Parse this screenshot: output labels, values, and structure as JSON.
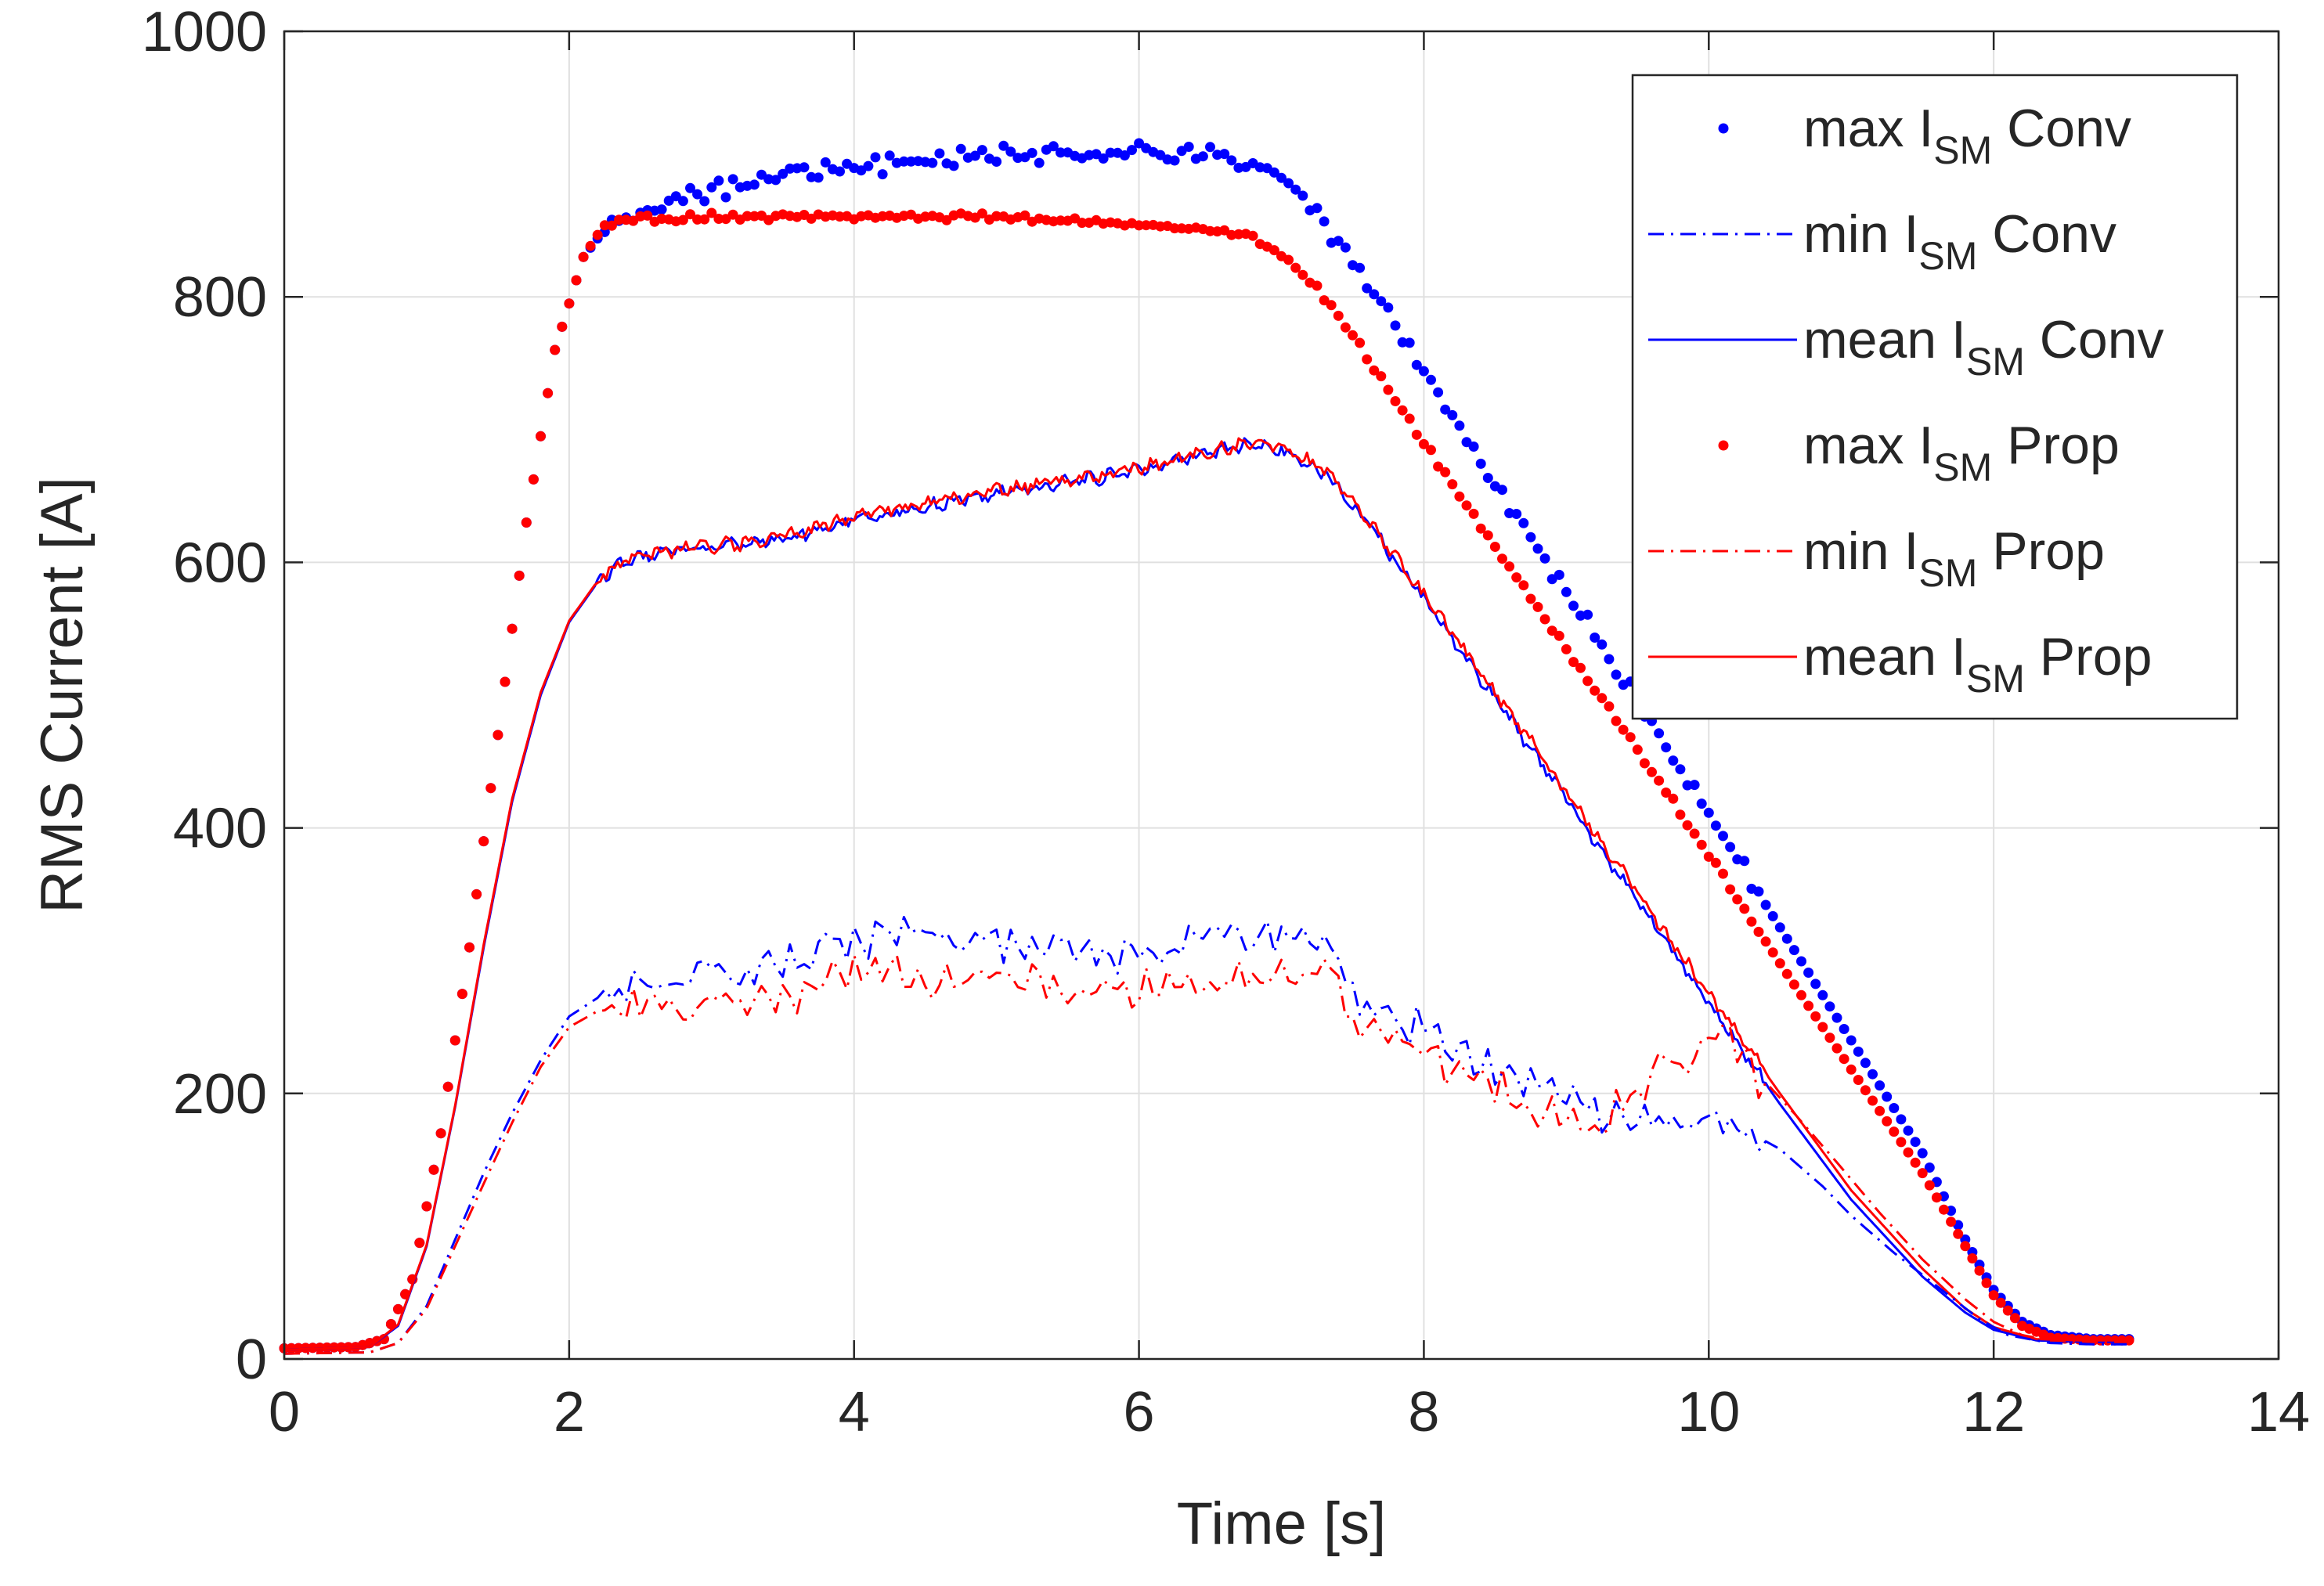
{
  "chart_data": {
    "type": "line",
    "title": "",
    "xlabel": "Time [s]",
    "ylabel": "RMS Current [A]",
    "xlim": [
      0,
      14
    ],
    "ylim": [
      0,
      1000
    ],
    "xticks": [
      0,
      2,
      4,
      6,
      8,
      10,
      12,
      14
    ],
    "yticks": [
      0,
      200,
      400,
      600,
      800,
      1000
    ],
    "grid": true,
    "legend_position": "top-right",
    "colors": {
      "conv": "#0000ff",
      "prop": "#ff0000",
      "axis": "#262626",
      "grid": "#e0e0e0"
    },
    "legend": [
      {
        "id": "max-conv",
        "prefix": "max I",
        "sub": "SM",
        "suffix": " Conv",
        "style": "dots",
        "color": "#0000ff"
      },
      {
        "id": "min-conv",
        "prefix": "min I",
        "sub": "SM",
        "suffix": " Conv",
        "style": "dashdot",
        "color": "#0000ff"
      },
      {
        "id": "mean-conv",
        "prefix": "mean I",
        "sub": "SM",
        "suffix": " Conv",
        "style": "solid",
        "color": "#0000ff"
      },
      {
        "id": "max-prop",
        "prefix": "max I",
        "sub": "SM",
        "suffix": " Prop",
        "style": "dots",
        "color": "#ff0000"
      },
      {
        "id": "min-prop",
        "prefix": "min I",
        "sub": "SM",
        "suffix": " Prop",
        "style": "dashdot",
        "color": "#ff0000"
      },
      {
        "id": "mean-prop",
        "prefix": "mean I",
        "sub": "SM",
        "suffix": " Prop",
        "style": "solid",
        "color": "#ff0000"
      }
    ],
    "series": [
      {
        "id": "max-conv",
        "name": "max I_SM Conv",
        "style": "dots",
        "color": "#0000ff",
        "sample_step": 0.05,
        "ripple": 5,
        "points": [
          [
            0,
            8
          ],
          [
            0.5,
            9
          ],
          [
            0.7,
            15
          ],
          [
            0.9,
            60
          ],
          [
            1.1,
            170
          ],
          [
            1.3,
            310
          ],
          [
            1.5,
            470
          ],
          [
            1.7,
            630
          ],
          [
            1.9,
            760
          ],
          [
            2.1,
            830
          ],
          [
            2.3,
            858
          ],
          [
            2.6,
            868
          ],
          [
            3,
            880
          ],
          [
            3.5,
            893
          ],
          [
            4,
            898
          ],
          [
            4.5,
            903
          ],
          [
            5,
            907
          ],
          [
            5.5,
            908
          ],
          [
            6,
            908
          ],
          [
            6.5,
            907
          ],
          [
            6.8,
            900
          ],
          [
            7,
            890
          ],
          [
            7.2,
            870
          ],
          [
            7.5,
            825
          ],
          [
            8,
            745
          ],
          [
            8.5,
            660
          ],
          [
            9,
            578
          ],
          [
            9.5,
            495
          ],
          [
            10,
            410
          ],
          [
            10.5,
            325
          ],
          [
            11,
            240
          ],
          [
            11.5,
            155
          ],
          [
            11.8,
            90
          ],
          [
            12,
            52
          ],
          [
            12.2,
            28
          ],
          [
            12.4,
            18
          ],
          [
            12.7,
            15
          ],
          [
            12.95,
            15
          ]
        ]
      },
      {
        "id": "max-prop",
        "name": "max I_SM Prop",
        "style": "dots",
        "color": "#ff0000",
        "sample_step": 0.05,
        "ripple": 2,
        "points": [
          [
            0,
            8
          ],
          [
            0.5,
            9
          ],
          [
            0.7,
            15
          ],
          [
            0.9,
            60
          ],
          [
            1.1,
            170
          ],
          [
            1.3,
            310
          ],
          [
            1.5,
            470
          ],
          [
            1.7,
            630
          ],
          [
            1.9,
            760
          ],
          [
            2.1,
            830
          ],
          [
            2.25,
            855
          ],
          [
            2.4,
            858
          ],
          [
            3,
            860
          ],
          [
            4,
            861
          ],
          [
            5,
            860
          ],
          [
            5.5,
            858
          ],
          [
            6,
            854
          ],
          [
            6.5,
            851
          ],
          [
            6.8,
            845
          ],
          [
            7,
            832
          ],
          [
            7.3,
            800
          ],
          [
            7.6,
            755
          ],
          [
            8,
            690
          ],
          [
            8.5,
            612
          ],
          [
            9,
            535
          ],
          [
            9.5,
            458
          ],
          [
            10,
            380
          ],
          [
            10.5,
            298
          ],
          [
            11,
            218
          ],
          [
            11.5,
            140
          ],
          [
            11.8,
            85
          ],
          [
            12,
            48
          ],
          [
            12.2,
            25
          ],
          [
            12.4,
            16
          ],
          [
            12.7,
            14
          ],
          [
            12.95,
            14
          ]
        ]
      },
      {
        "id": "mean-conv",
        "name": "mean I_SM Conv",
        "style": "solid",
        "color": "#0000ff",
        "sample_step": 0.02,
        "ripple": 4,
        "points": [
          [
            0,
            7
          ],
          [
            0.6,
            9
          ],
          [
            0.8,
            25
          ],
          [
            1,
            85
          ],
          [
            1.2,
            190
          ],
          [
            1.4,
            310
          ],
          [
            1.6,
            420
          ],
          [
            1.8,
            500
          ],
          [
            2,
            555
          ],
          [
            2.2,
            585
          ],
          [
            2.4,
            602
          ],
          [
            2.8,
            610
          ],
          [
            3.2,
            613
          ],
          [
            3.6,
            620
          ],
          [
            4,
            632
          ],
          [
            4.5,
            642
          ],
          [
            5,
            652
          ],
          [
            5.5,
            660
          ],
          [
            6,
            669
          ],
          [
            6.5,
            682
          ],
          [
            6.8,
            689
          ],
          [
            7,
            685
          ],
          [
            7.3,
            668
          ],
          [
            7.6,
            630
          ],
          [
            8,
            572
          ],
          [
            8.5,
            498
          ],
          [
            9,
            422
          ],
          [
            9.5,
            345
          ],
          [
            10,
            268
          ],
          [
            10.5,
            192
          ],
          [
            11,
            120
          ],
          [
            11.5,
            62
          ],
          [
            11.8,
            35
          ],
          [
            12,
            22
          ],
          [
            12.3,
            14
          ],
          [
            12.6,
            13
          ],
          [
            12.95,
            13
          ]
        ]
      },
      {
        "id": "mean-prop",
        "name": "mean I_SM Prop",
        "style": "solid",
        "color": "#ff0000",
        "sample_step": 0.02,
        "ripple": 4,
        "points": [
          [
            0,
            7
          ],
          [
            0.6,
            9
          ],
          [
            0.8,
            26
          ],
          [
            1,
            86
          ],
          [
            1.2,
            191
          ],
          [
            1.4,
            312
          ],
          [
            1.6,
            422
          ],
          [
            1.8,
            502
          ],
          [
            2,
            556
          ],
          [
            2.2,
            586
          ],
          [
            2.4,
            603
          ],
          [
            2.8,
            611
          ],
          [
            3.2,
            614
          ],
          [
            3.6,
            622
          ],
          [
            4,
            634
          ],
          [
            4.5,
            644
          ],
          [
            5,
            654
          ],
          [
            5.5,
            662
          ],
          [
            6,
            671
          ],
          [
            6.5,
            684
          ],
          [
            6.8,
            690
          ],
          [
            7,
            687
          ],
          [
            7.3,
            670
          ],
          [
            7.6,
            633
          ],
          [
            8,
            575
          ],
          [
            8.5,
            502
          ],
          [
            9,
            427
          ],
          [
            9.5,
            351
          ],
          [
            10,
            275
          ],
          [
            10.5,
            200
          ],
          [
            11,
            127
          ],
          [
            11.5,
            68
          ],
          [
            11.8,
            38
          ],
          [
            12,
            24
          ],
          [
            12.3,
            15
          ],
          [
            12.6,
            14
          ],
          [
            12.95,
            14
          ]
        ]
      },
      {
        "id": "min-conv",
        "name": "min I_SM Conv",
        "style": "dashdot",
        "color": "#0000ff",
        "sample_step": 0.05,
        "ripple": 12,
        "points": [
          [
            0,
            4
          ],
          [
            0.6,
            5
          ],
          [
            0.8,
            12
          ],
          [
            1,
            40
          ],
          [
            1.2,
            90
          ],
          [
            1.4,
            140
          ],
          [
            1.6,
            185
          ],
          [
            1.8,
            225
          ],
          [
            2,
            258
          ],
          [
            2.2,
            272
          ],
          [
            2.5,
            282
          ],
          [
            3,
            290
          ],
          [
            3.5,
            294
          ],
          [
            3.7,
            296
          ],
          [
            3.75,
            315
          ],
          [
            4,
            318
          ],
          [
            4.5,
            318
          ],
          [
            5,
            316
          ],
          [
            5.5,
            312
          ],
          [
            6,
            305
          ],
          [
            6.5,
            318
          ],
          [
            6.8,
            325
          ],
          [
            7,
            318
          ],
          [
            7.4,
            305
          ],
          [
            7.45,
            275
          ],
          [
            7.6,
            265
          ],
          [
            8,
            245
          ],
          [
            8.5,
            218
          ],
          [
            9,
            190
          ],
          [
            9.3,
            180
          ],
          [
            9.6,
            178
          ],
          [
            9.8,
            180
          ],
          [
            10,
            182
          ],
          [
            10.2,
            176
          ],
          [
            10.5,
            158
          ],
          [
            10.8,
            130
          ],
          [
            11,
            108
          ],
          [
            11.3,
            80
          ],
          [
            11.6,
            55
          ],
          [
            11.9,
            30
          ],
          [
            12.1,
            18
          ],
          [
            12.4,
            12
          ],
          [
            12.7,
            11
          ],
          [
            12.95,
            11
          ]
        ]
      },
      {
        "id": "min-prop",
        "name": "min I_SM Prop",
        "style": "dashdot",
        "color": "#ff0000",
        "sample_step": 0.05,
        "ripple": 12,
        "points": [
          [
            0,
            4
          ],
          [
            0.6,
            5
          ],
          [
            0.8,
            12
          ],
          [
            1,
            38
          ],
          [
            1.2,
            85
          ],
          [
            1.4,
            132
          ],
          [
            1.6,
            178
          ],
          [
            1.8,
            220
          ],
          [
            2,
            250
          ],
          [
            2.2,
            262
          ],
          [
            2.5,
            266
          ],
          [
            3,
            268
          ],
          [
            3.5,
            270
          ],
          [
            3.7,
            272
          ],
          [
            3.75,
            290
          ],
          [
            4,
            292
          ],
          [
            4.5,
            290
          ],
          [
            5,
            285
          ],
          [
            5.5,
            280
          ],
          [
            6,
            278
          ],
          [
            6.5,
            285
          ],
          [
            6.8,
            292
          ],
          [
            7,
            290
          ],
          [
            7.4,
            285
          ],
          [
            7.45,
            258
          ],
          [
            7.6,
            250
          ],
          [
            8,
            232
          ],
          [
            8.5,
            205
          ],
          [
            9,
            180
          ],
          [
            9.2,
            172
          ],
          [
            9.3,
            180
          ],
          [
            9.5,
            205
          ],
          [
            9.7,
            218
          ],
          [
            9.9,
            228
          ],
          [
            10.1,
            240
          ],
          [
            10.3,
            220
          ],
          [
            10.6,
            185
          ],
          [
            10.9,
            148
          ],
          [
            11.2,
            110
          ],
          [
            11.5,
            75
          ],
          [
            11.8,
            45
          ],
          [
            12,
            28
          ],
          [
            12.2,
            18
          ],
          [
            12.4,
            14
          ],
          [
            12.7,
            13
          ],
          [
            12.95,
            13
          ]
        ]
      }
    ]
  }
}
